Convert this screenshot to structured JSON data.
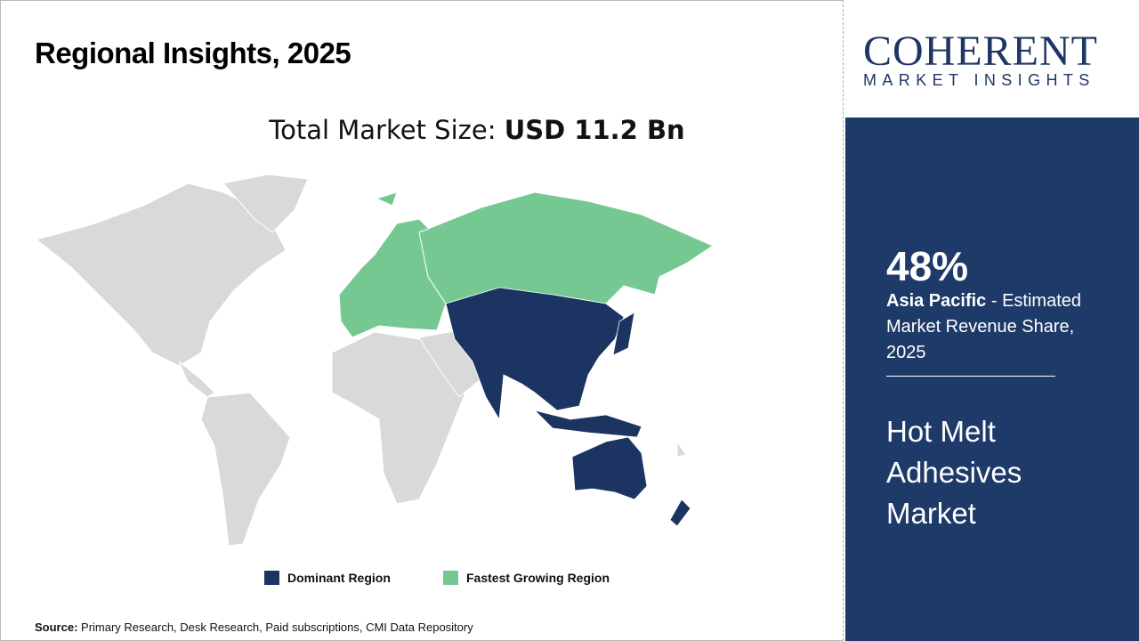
{
  "title": "Regional Insights, 2025",
  "total_market": {
    "label": "Total Market Size: ",
    "value": "USD 11.2 Bn"
  },
  "legend": [
    {
      "label": "Dominant Region",
      "color": "#1b3461"
    },
    {
      "label": "Fastest Growing Region",
      "color": "#76c893"
    }
  ],
  "source": {
    "label": "Source:",
    "text": " Primary Research, Desk Research, Paid subscriptions, CMI Data Repository"
  },
  "logo": {
    "line1": "COHERENT",
    "line2": "MARKET INSIGHTS"
  },
  "panel": {
    "percent": "48%",
    "region": "Asia Pacific",
    "desc": " - Estimated Market Revenue Share, 2025",
    "market": "Hot Melt Adhesives Market",
    "bg": "#1e3a68"
  },
  "map_colors": {
    "other": "#d9d9d9",
    "dominant": "#1b3461",
    "fastest": "#76c893"
  }
}
